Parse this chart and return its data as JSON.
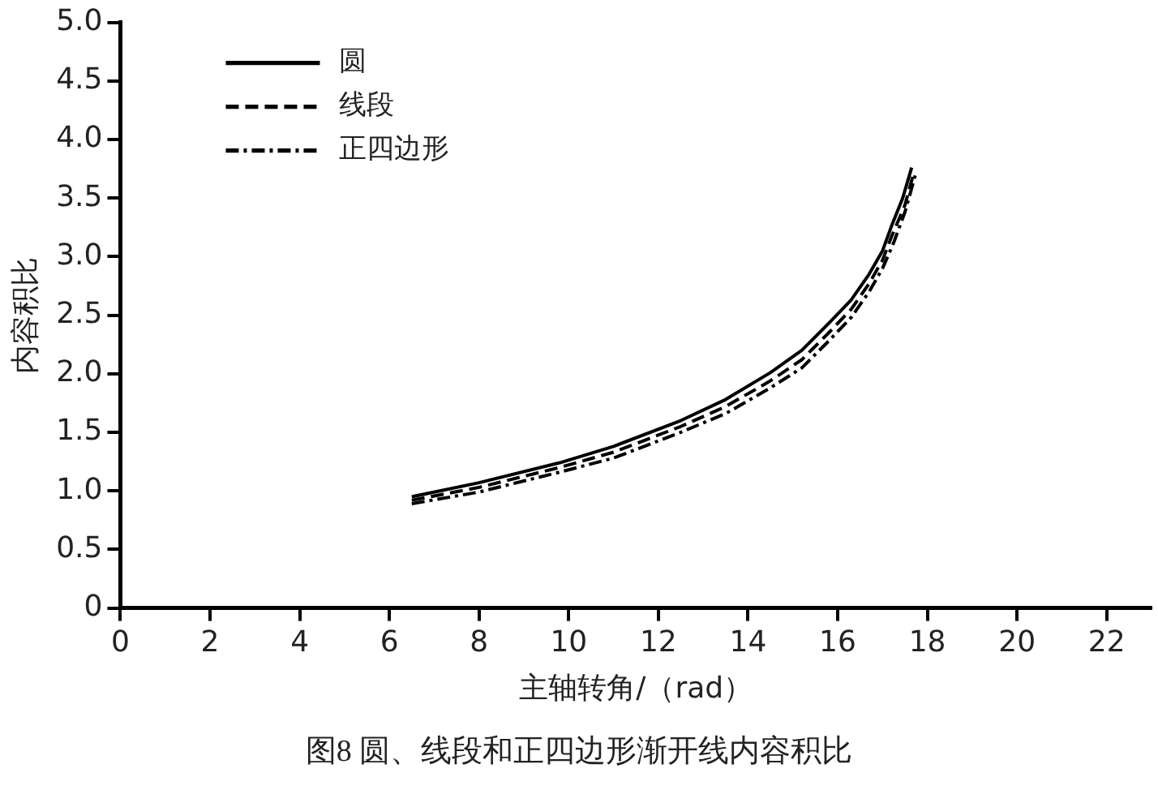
{
  "chart_data": {
    "type": "line",
    "xlabel": "主轴转角/（rad）",
    "ylabel": "内容积比",
    "annotations": [
      "图8  圆、线段和正四边形渐开线内容积比"
    ],
    "xlim": [
      0,
      23
    ],
    "xticks": [
      0,
      2,
      4,
      6,
      8,
      10,
      12,
      14,
      16,
      18,
      20,
      22
    ],
    "ylim": [
      0,
      5
    ],
    "yticks": [
      0,
      {
        "value": 0.5,
        "label": "0.5"
      },
      {
        "value": 1,
        "label": "1.0"
      },
      {
        "value": 1.5,
        "label": "1.5"
      },
      {
        "value": 2,
        "label": "2.0"
      },
      {
        "value": 2.5,
        "label": "2.5"
      },
      {
        "value": 3,
        "label": "3.0"
      },
      {
        "value": 3.5,
        "label": "3.5"
      },
      {
        "value": 4,
        "label": "4.0"
      },
      {
        "value": 4.5,
        "label": "4.5"
      },
      {
        "value": 5,
        "label": "5.0"
      }
    ],
    "grid": false,
    "legend": "top left",
    "marker": "none",
    "series": [
      {
        "name": "圆",
        "color": "#000000",
        "line_style": "solid",
        "x": [
          6.5,
          8,
          9.8,
          11,
          12.5,
          13.5,
          14.5,
          15.2,
          15.8,
          16.3,
          16.7,
          17,
          17.2,
          17.45,
          17.65
        ],
        "values": [
          0.95,
          1.07,
          1.24,
          1.38,
          1.6,
          1.78,
          2.01,
          2.2,
          2.43,
          2.63,
          2.85,
          3.05,
          3.26,
          3.5,
          3.76
        ]
      },
      {
        "name": "线段",
        "color": "#000000",
        "line_style": "dashed",
        "x": [
          6.5,
          8,
          9.8,
          11,
          12.5,
          13.5,
          14.5,
          15.2,
          15.8,
          16.3,
          16.7,
          17,
          17.2,
          17.5,
          17.7
        ],
        "values": [
          0.92,
          1.03,
          1.2,
          1.33,
          1.55,
          1.72,
          1.94,
          2.12,
          2.35,
          2.55,
          2.77,
          2.97,
          3.17,
          3.44,
          3.72
        ]
      },
      {
        "name": "正四边形",
        "color": "#000000",
        "line_style": "dashdot",
        "x": [
          6.5,
          8,
          9.8,
          11,
          12.5,
          13.5,
          14.5,
          15.2,
          15.8,
          16.3,
          16.7,
          17,
          17.25,
          17.5,
          17.75
        ],
        "values": [
          0.89,
          0.99,
          1.16,
          1.28,
          1.5,
          1.66,
          1.88,
          2.05,
          2.28,
          2.48,
          2.7,
          2.9,
          3.12,
          3.38,
          3.72
        ]
      }
    ]
  }
}
